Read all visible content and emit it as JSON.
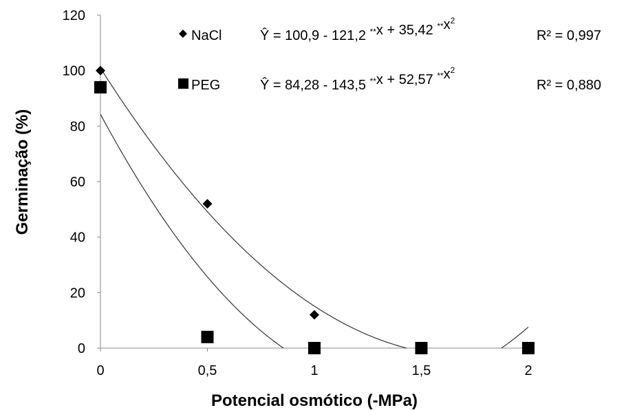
{
  "chart_data": {
    "type": "scatter",
    "xlabel": "Potencial osmótico (-MPa)",
    "ylabel": "Germinação (%)",
    "xlim": [
      0,
      2
    ],
    "ylim": [
      0,
      120
    ],
    "x_ticks": [
      "0",
      "0,5",
      "1",
      "1,5",
      "2"
    ],
    "y_ticks": [
      "0",
      "20",
      "40",
      "60",
      "80",
      "100",
      "120"
    ],
    "grid": false,
    "legend_position": "top",
    "series": [
      {
        "name": "NaCl",
        "marker": "diamond",
        "color": "#000000",
        "x": [
          0,
          0.5,
          1,
          1.5,
          2
        ],
        "y": [
          100,
          52,
          12,
          0,
          0
        ],
        "fit": {
          "a": 100.9,
          "b": -121.2,
          "c": 35.42
        },
        "equation": {
          "text": "Ŷ = 100,9 - 121,2 ",
          "stars1": "**",
          "mid": "x + 35,42 ",
          "stars2": "**",
          "tail": "x",
          "pow": "2",
          "r2": "R² = 0,997"
        }
      },
      {
        "name": "PEG",
        "marker": "square",
        "color": "#000000",
        "x": [
          0,
          0.5,
          1,
          1.5,
          2
        ],
        "y": [
          94,
          4,
          0,
          0,
          0
        ],
        "fit": {
          "a": 84.28,
          "b": -143.5,
          "c": 52.57
        },
        "equation": {
          "text": "Ŷ = 84,28 - 143,5 ",
          "stars1": "**",
          "mid": "x + 52,57 ",
          "stars2": "**",
          "tail": "x",
          "pow": "2",
          "r2": "R² = 0,880"
        }
      }
    ]
  }
}
